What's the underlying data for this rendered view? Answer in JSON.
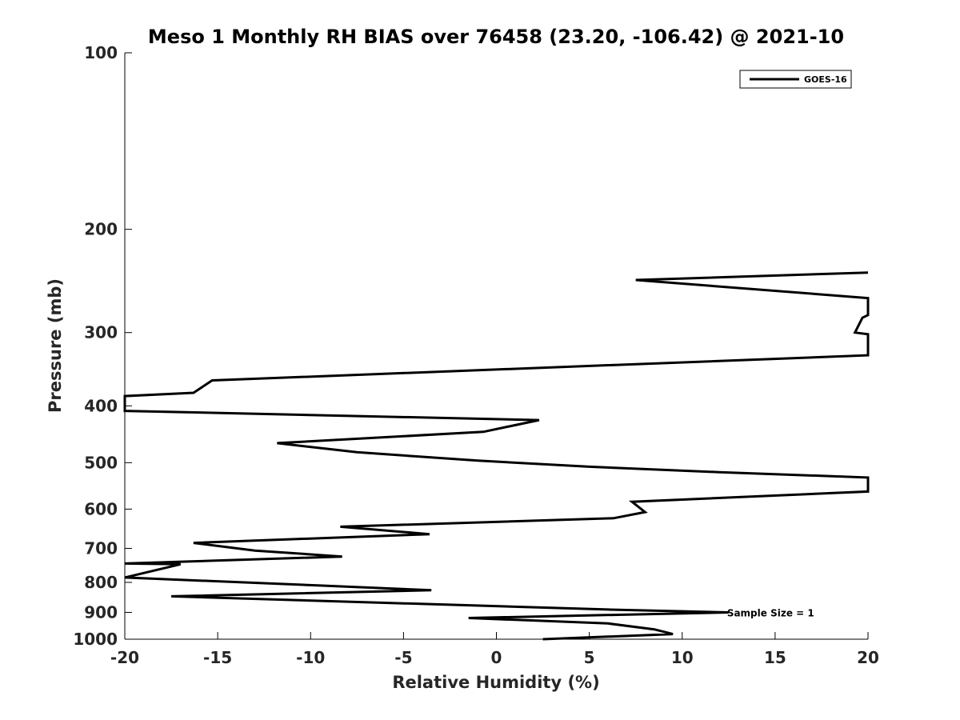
{
  "chart_data": {
    "type": "line",
    "title": "Meso 1 Monthly RH BIAS over 76458 (23.20, -106.42) @ 2021-10",
    "xlabel": "Relative Humidity (%)",
    "ylabel": "Pressure (mb)",
    "xlim": [
      -20,
      20
    ],
    "ylim": [
      100,
      1000
    ],
    "yscale": "log",
    "y_reversed": true,
    "grid": false,
    "legend_position": "top-right",
    "x_ticks": [
      "-20",
      "-15",
      "-10",
      "-5",
      "0",
      "5",
      "10",
      "15",
      "20"
    ],
    "y_ticks": [
      "100",
      "200",
      "300",
      "400",
      "500",
      "600",
      "700",
      "800",
      "900",
      "1000"
    ],
    "series": [
      {
        "name": "GOES-16",
        "color": "#000000",
        "points": [
          [
            2.5,
            1000
          ],
          [
            9.5,
            980
          ],
          [
            8.5,
            962
          ],
          [
            6,
            940
          ],
          [
            -1.5,
            920
          ],
          [
            12.5,
            900
          ],
          [
            6,
            890
          ],
          [
            -17.5,
            845
          ],
          [
            -3.5,
            825
          ],
          [
            -9.5,
            810
          ],
          [
            -20,
            785
          ],
          [
            -17,
            745
          ],
          [
            -20,
            743
          ],
          [
            -8.3,
            723
          ],
          [
            -13,
            706
          ],
          [
            -16.3,
            685
          ],
          [
            -3.6,
            662
          ],
          [
            -8.4,
            643
          ],
          [
            6.3,
            622
          ],
          [
            8.0,
            607
          ],
          [
            7.3,
            583
          ],
          [
            20,
            560
          ],
          [
            20,
            530
          ],
          [
            12,
            519
          ],
          [
            5,
            508
          ],
          [
            -1,
            496
          ],
          [
            -7.5,
            480
          ],
          [
            -11.8,
            463
          ],
          [
            -0.7,
            443
          ],
          [
            2.3,
            423
          ],
          [
            -20,
            408
          ],
          [
            -20,
            385
          ],
          [
            -16.3,
            380
          ],
          [
            -15.3,
            362
          ],
          [
            20,
            328
          ],
          [
            20,
            302
          ],
          [
            19.3,
            300
          ],
          [
            19.7,
            283
          ],
          [
            20,
            280
          ],
          [
            20,
            262
          ],
          [
            7.5,
            244
          ],
          [
            20,
            237
          ]
        ]
      }
    ],
    "annotations": [
      {
        "text": "Sample Size = 1",
        "x": 12.5,
        "y": 900
      }
    ]
  }
}
